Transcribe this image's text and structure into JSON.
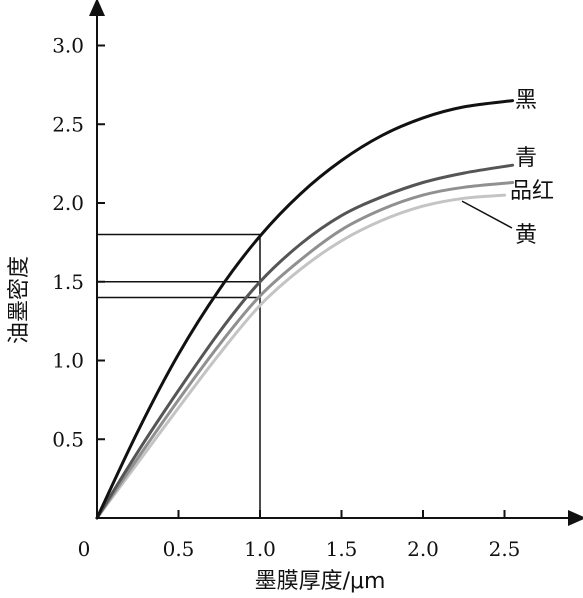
{
  "chart_data": {
    "type": "line",
    "xlabel": "墨膜厚度/μm",
    "ylabel": "油墨密度",
    "xlim": [
      0,
      2.9
    ],
    "ylim": [
      0,
      3.2
    ],
    "x_ticks": [
      0,
      0.5,
      1.0,
      1.5,
      2.0,
      2.5
    ],
    "x_tick_labels": [
      "0",
      "0.5",
      "1.0",
      "1.5",
      "2.0",
      "2.5"
    ],
    "y_ticks": [
      0.5,
      1.0,
      1.5,
      2.0,
      2.5,
      3.0
    ],
    "y_tick_labels": [
      "0.5",
      "1.0",
      "1.5",
      "2.0",
      "2.5",
      "3.0"
    ],
    "grid": false,
    "legend": "none (labels at line ends)",
    "series": [
      {
        "name": "黑",
        "color": "#111111",
        "x": [
          0,
          0.25,
          0.5,
          0.75,
          1.0,
          1.25,
          1.5,
          1.75,
          2.0,
          2.25,
          2.55
        ],
        "values": [
          0,
          0.55,
          1.04,
          1.45,
          1.79,
          2.06,
          2.27,
          2.43,
          2.54,
          2.61,
          2.65
        ]
      },
      {
        "name": "青",
        "color": "#555555",
        "x": [
          0,
          0.25,
          0.5,
          0.75,
          1.0,
          1.25,
          1.5,
          1.75,
          2.0,
          2.25,
          2.55
        ],
        "values": [
          0,
          0.42,
          0.81,
          1.18,
          1.5,
          1.74,
          1.92,
          2.04,
          2.13,
          2.19,
          2.24
        ]
      },
      {
        "name": "品红",
        "color": "#909090",
        "x": [
          0,
          0.25,
          0.5,
          0.75,
          1.0,
          1.25,
          1.5,
          1.75,
          2.0,
          2.25,
          2.55
        ],
        "values": [
          0,
          0.38,
          0.75,
          1.1,
          1.41,
          1.64,
          1.83,
          1.96,
          2.05,
          2.1,
          2.13
        ]
      },
      {
        "name": "黄",
        "color": "#c4c4c4",
        "x": [
          0,
          0.25,
          0.5,
          0.75,
          1.0,
          1.25,
          1.5,
          1.75,
          2.0,
          2.25,
          2.5
        ],
        "values": [
          0,
          0.35,
          0.7,
          1.04,
          1.35,
          1.58,
          1.76,
          1.89,
          1.98,
          2.03,
          2.05
        ]
      }
    ],
    "reference_lines": {
      "x": 1.0,
      "y_values": [
        1.8,
        1.5,
        1.4
      ]
    }
  }
}
